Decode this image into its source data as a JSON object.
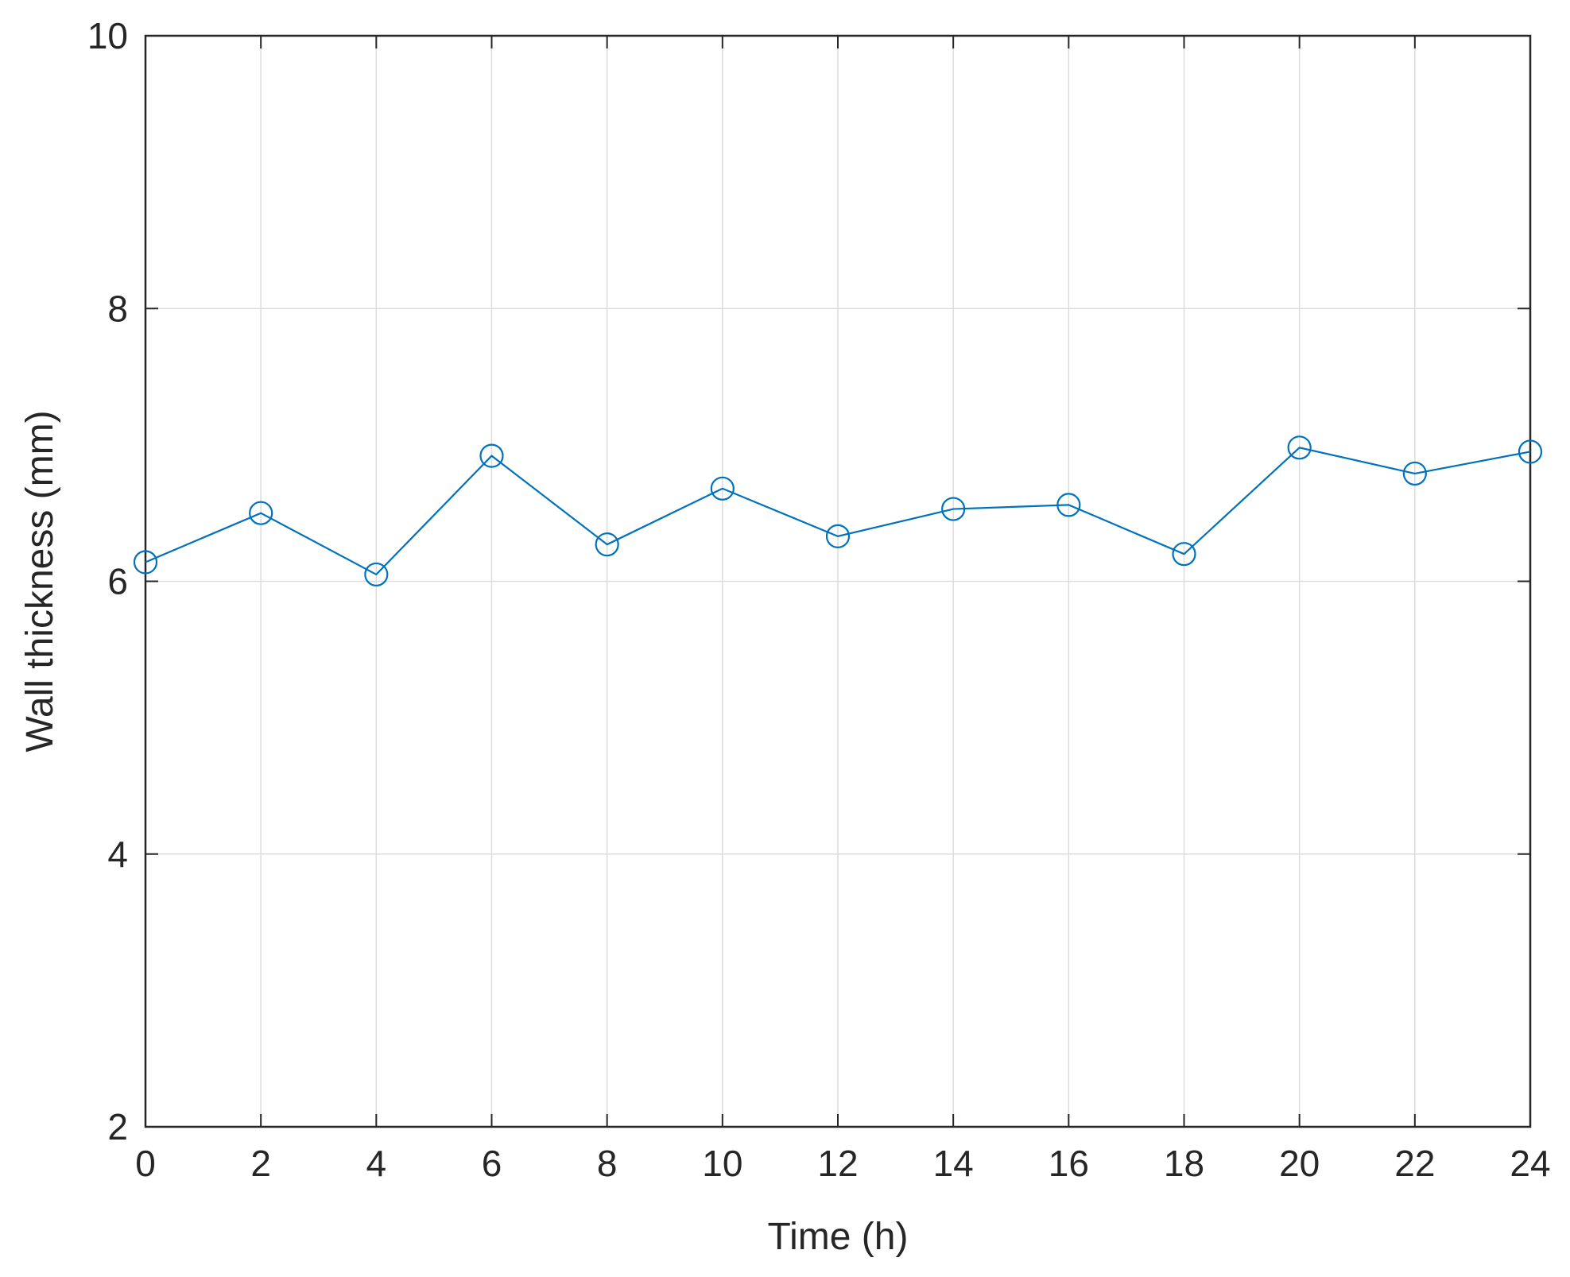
{
  "chart_data": {
    "type": "line",
    "title": "",
    "xlabel": "Time (h)",
    "ylabel": "Wall thickness (mm)",
    "xlim": [
      0,
      24
    ],
    "ylim": [
      2,
      10
    ],
    "xticks": [
      "0",
      "2",
      "4",
      "6",
      "8",
      "10",
      "12",
      "14",
      "16",
      "18",
      "20",
      "22",
      "24"
    ],
    "yticks": [
      "2",
      "4",
      "6",
      "8",
      "10"
    ],
    "grid": true,
    "marker": "circle",
    "series": [
      {
        "color": "#0072BD",
        "x": [
          0,
          2,
          4,
          6,
          8,
          10,
          12,
          14,
          16,
          18,
          20,
          22,
          24
        ],
        "y": [
          6.14,
          6.5,
          6.05,
          6.92,
          6.27,
          6.68,
          6.33,
          6.53,
          6.56,
          6.2,
          6.98,
          6.79,
          6.95
        ]
      }
    ]
  }
}
